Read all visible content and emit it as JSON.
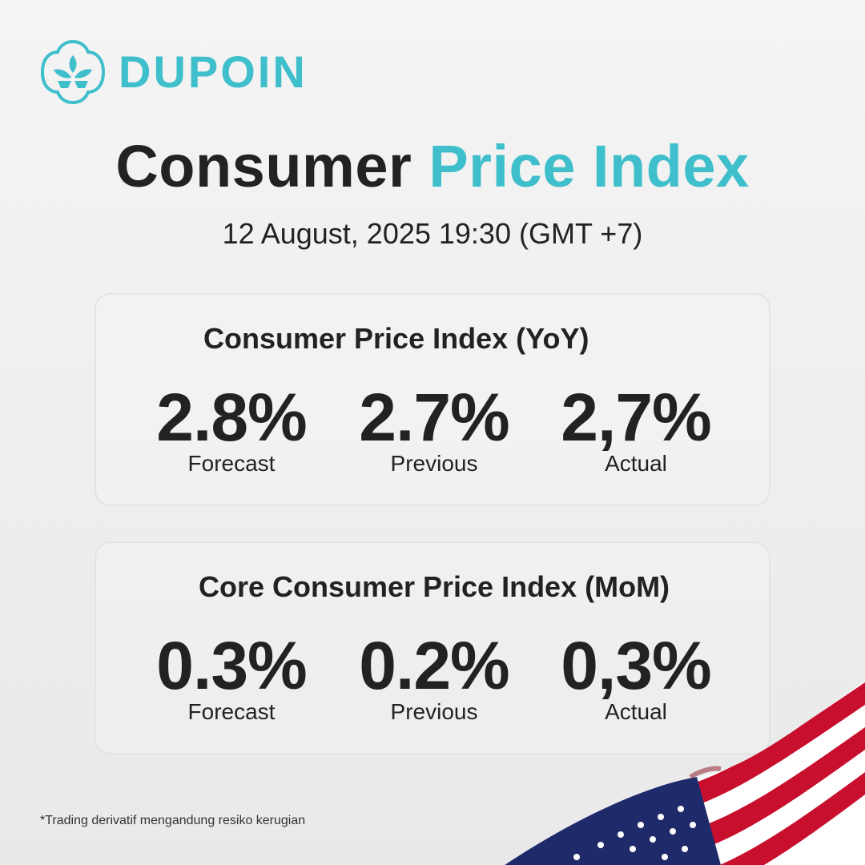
{
  "brand": {
    "name": "DUPOIN",
    "logo_icon": "lotus-icon",
    "color": "#3ebfcb"
  },
  "headline": {
    "part1": "Consumer",
    "part2": "Price Index",
    "accent_color": "#3ebfcb"
  },
  "datetime": "12 August, 2025 19:30 (GMT +7)",
  "cards": [
    {
      "title": "Consumer Price Index (YoY)",
      "metrics": [
        {
          "value": "2.8%",
          "label": "Forecast"
        },
        {
          "value": "2.7%",
          "label": "Previous"
        },
        {
          "value": "2,7%",
          "label": "Actual"
        }
      ]
    },
    {
      "title": "Core Consumer Price Index (MoM)",
      "metrics": [
        {
          "value": "0.3%",
          "label": "Forecast"
        },
        {
          "value": "0.2%",
          "label": "Previous"
        },
        {
          "value": "0,3%",
          "label": "Actual"
        }
      ]
    }
  ],
  "disclaimer": "*Trading derivatif mengandung resiko kerugian",
  "decoration": {
    "flag_icon": "us-flag-icon"
  }
}
